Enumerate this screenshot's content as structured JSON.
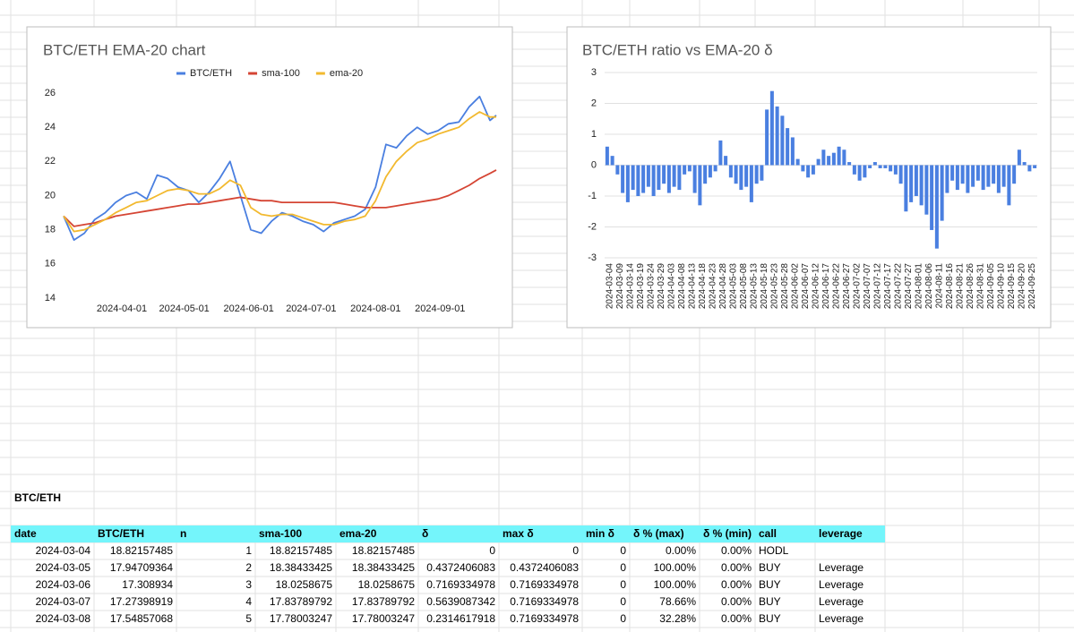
{
  "chart_data": [
    {
      "type": "line",
      "title": "BTC/ETH EMA-20 chart",
      "x": [
        "2024-03-04",
        "2024-03-09",
        "2024-03-14",
        "2024-03-19",
        "2024-03-24",
        "2024-03-29",
        "2024-04-03",
        "2024-04-08",
        "2024-04-13",
        "2024-04-18",
        "2024-04-23",
        "2024-04-28",
        "2024-05-03",
        "2024-05-08",
        "2024-05-13",
        "2024-05-18",
        "2024-05-23",
        "2024-05-28",
        "2024-06-02",
        "2024-06-07",
        "2024-06-12",
        "2024-06-17",
        "2024-06-22",
        "2024-06-27",
        "2024-07-02",
        "2024-07-07",
        "2024-07-12",
        "2024-07-17",
        "2024-07-22",
        "2024-07-27",
        "2024-08-01",
        "2024-08-06",
        "2024-08-11",
        "2024-08-16",
        "2024-08-21",
        "2024-08-26",
        "2024-08-31",
        "2024-09-05",
        "2024-09-10",
        "2024-09-15",
        "2024-09-20",
        "2024-09-25",
        "2024-09-28"
      ],
      "series": [
        {
          "name": "BTC/ETH",
          "color": "#4a7fe0",
          "values": [
            18.8,
            17.4,
            17.8,
            18.6,
            19.0,
            19.6,
            20.0,
            20.2,
            19.8,
            21.2,
            21.0,
            20.5,
            20.3,
            19.6,
            20.2,
            21.0,
            22.0,
            20.0,
            18.0,
            17.8,
            18.5,
            19.0,
            18.8,
            18.5,
            18.3,
            17.9,
            18.4,
            18.6,
            18.8,
            19.2,
            20.5,
            23.0,
            22.8,
            23.5,
            24.0,
            23.6,
            23.8,
            24.2,
            24.3,
            25.2,
            25.8,
            24.4,
            24.7
          ]
        },
        {
          "name": "sma-100",
          "color": "#d54534",
          "values": [
            18.8,
            18.2,
            18.3,
            18.4,
            18.6,
            18.8,
            18.9,
            19.0,
            19.1,
            19.2,
            19.3,
            19.4,
            19.5,
            19.5,
            19.6,
            19.7,
            19.8,
            19.9,
            19.8,
            19.7,
            19.7,
            19.6,
            19.6,
            19.6,
            19.6,
            19.6,
            19.6,
            19.5,
            19.4,
            19.3,
            19.3,
            19.3,
            19.4,
            19.5,
            19.6,
            19.7,
            19.8,
            20.0,
            20.3,
            20.6,
            21.0,
            21.3,
            21.5
          ]
        },
        {
          "name": "ema-20",
          "color": "#f2b92f",
          "values": [
            18.8,
            17.9,
            18.0,
            18.3,
            18.6,
            19.0,
            19.3,
            19.6,
            19.7,
            20.0,
            20.3,
            20.4,
            20.3,
            20.1,
            20.1,
            20.4,
            20.9,
            20.6,
            19.3,
            18.9,
            18.8,
            18.9,
            18.9,
            18.7,
            18.5,
            18.3,
            18.3,
            18.5,
            18.6,
            18.8,
            19.7,
            21.1,
            22.0,
            22.6,
            23.1,
            23.3,
            23.6,
            23.8,
            24.0,
            24.5,
            24.9,
            24.6,
            24.6
          ]
        }
      ],
      "xlim": [
        "2024-03-04",
        "2024-09-28"
      ],
      "xticks": [
        "2024-04-01",
        "2024-05-01",
        "2024-06-01",
        "2024-07-01",
        "2024-08-01",
        "2024-09-01"
      ],
      "ylim": [
        14,
        26
      ],
      "yticks": [
        14,
        16,
        18,
        20,
        22,
        24,
        26
      ],
      "grid": false,
      "legend": "top"
    },
    {
      "type": "bar",
      "title": "BTC/ETH ratio vs EMA-20 δ",
      "color": "#4a7fe0",
      "categories": [
        "2024-03-04",
        null,
        "2024-03-09",
        null,
        "2024-03-14",
        null,
        "2024-03-19",
        null,
        "2024-03-24",
        null,
        "2024-03-29",
        null,
        "2024-04-03",
        null,
        "2024-04-08",
        null,
        "2024-04-13",
        null,
        "2024-04-18",
        null,
        "2024-04-23",
        null,
        "2024-04-28",
        null,
        "2024-05-03",
        null,
        "2024-05-08",
        null,
        "2024-05-13",
        null,
        "2024-05-18",
        null,
        "2024-05-23",
        null,
        "2024-05-28",
        null,
        "2024-06-02",
        null,
        "2024-06-07",
        null,
        "2024-06-12",
        null,
        "2024-06-17",
        null,
        "2024-06-22",
        null,
        "2024-06-27",
        null,
        "2024-07-02",
        null,
        "2024-07-07",
        null,
        "2024-07-12",
        null,
        "2024-07-17",
        null,
        "2024-07-22",
        null,
        "2024-07-27",
        null,
        "2024-08-01",
        null,
        "2024-08-06",
        null,
        "2024-08-11",
        null,
        "2024-08-16",
        null,
        "2024-08-21",
        null,
        "2024-08-26",
        null,
        "2024-08-31",
        null,
        "2024-09-05",
        null,
        "2024-09-10",
        null,
        "2024-09-15",
        null,
        "2024-09-20",
        null,
        "2024-09-25",
        null
      ],
      "values": [
        0.6,
        0.3,
        -0.3,
        -0.9,
        -1.2,
        -0.8,
        -1.0,
        -0.9,
        -0.7,
        -1.0,
        -0.8,
        -0.6,
        -0.9,
        -0.7,
        -0.8,
        -0.3,
        -0.2,
        -0.9,
        -1.3,
        -0.6,
        -0.4,
        -0.2,
        0.8,
        0.3,
        -0.4,
        -0.6,
        -0.8,
        -0.7,
        -1.2,
        -0.6,
        -0.5,
        1.8,
        2.4,
        1.9,
        1.6,
        1.2,
        0.9,
        0.2,
        -0.2,
        -0.4,
        -0.3,
        0.2,
        0.5,
        0.3,
        0.4,
        0.6,
        0.5,
        0.1,
        -0.3,
        -0.5,
        -0.4,
        -0.1,
        0.1,
        -0.1,
        -0.1,
        -0.2,
        -0.3,
        -0.6,
        -1.5,
        -1.2,
        -1.0,
        -1.3,
        -1.6,
        -2.1,
        -2.7,
        -1.8,
        -0.9,
        -0.5,
        -0.8,
        -0.6,
        -0.9,
        -0.7,
        -0.5,
        -0.8,
        -0.7,
        -0.6,
        -0.9,
        -0.7,
        -1.3,
        -0.6,
        0.5,
        0.1,
        -0.2,
        -0.1
      ],
      "ylim": [
        -3,
        3
      ],
      "yticks": [
        -3,
        -2,
        -1,
        0,
        1,
        2,
        3
      ],
      "grid": true
    }
  ],
  "sheet": {
    "title": "BTC/ETH",
    "columns": [
      "date",
      "BTC/ETH",
      "n",
      "sma-100",
      "ema-20",
      "δ",
      "max δ",
      "min δ",
      "δ % (max)",
      "δ % (min)",
      "call",
      "leverage"
    ],
    "rows": [
      [
        "2024-03-04",
        "18.82157485",
        "1",
        "18.82157485",
        "18.82157485",
        "0",
        "0",
        "0",
        "0.00%",
        "0.00%",
        "HODL"
      ],
      [
        "2024-03-05",
        "17.94709364",
        "2",
        "18.38433425",
        "18.38433425",
        "0.4372406083",
        "0.4372406083",
        "0",
        "100.00%",
        "0.00%",
        "BUY",
        "Leverage"
      ],
      [
        "2024-03-06",
        "17.308934",
        "3",
        "18.0258675",
        "18.0258675",
        "0.7169334978",
        "0.7169334978",
        "0",
        "100.00%",
        "0.00%",
        "BUY",
        "Leverage"
      ],
      [
        "2024-03-07",
        "17.27398919",
        "4",
        "17.83789792",
        "17.83789792",
        "0.5639087342",
        "0.7169334978",
        "0",
        "78.66%",
        "0.00%",
        "BUY",
        "Leverage"
      ],
      [
        "2024-03-08",
        "17.54857068",
        "5",
        "17.78003247",
        "17.78003247",
        "0.2314617918",
        "0.7169334978",
        "0",
        "32.28%",
        "0.00%",
        "BUY",
        "Leverage"
      ]
    ]
  }
}
